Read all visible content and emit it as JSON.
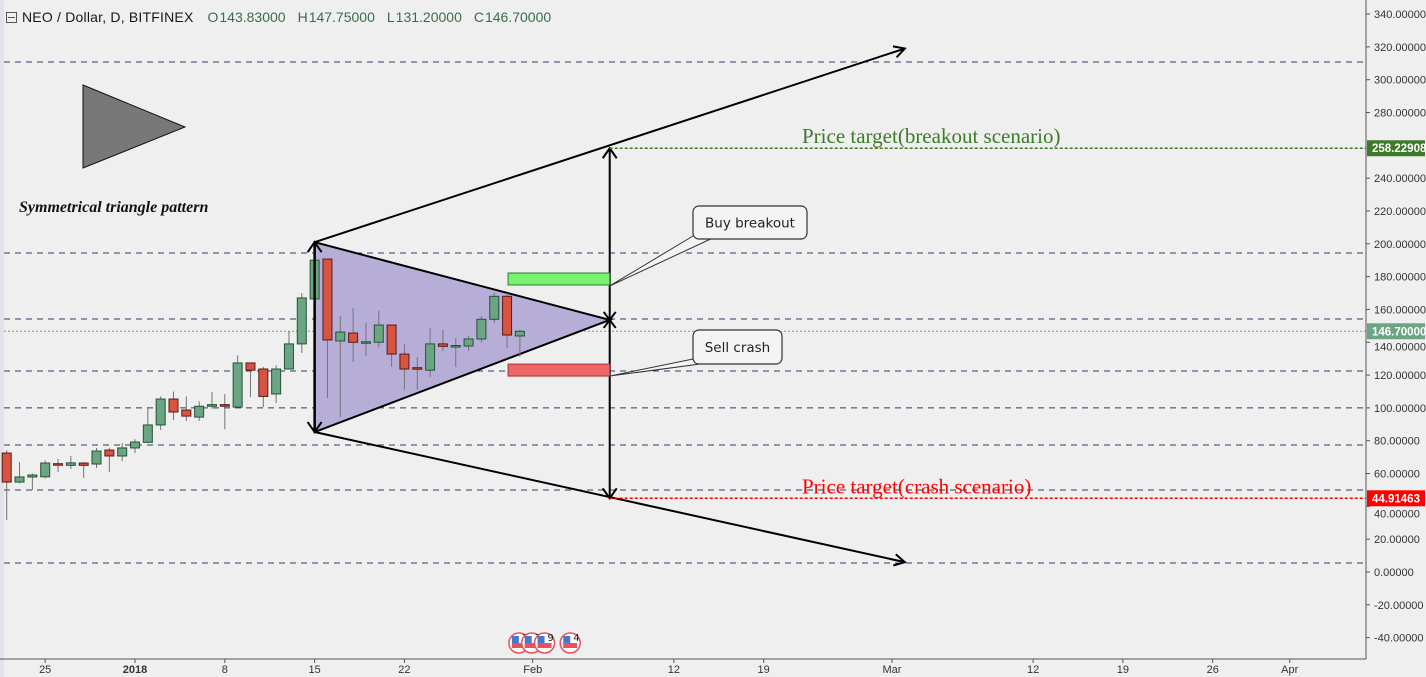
{
  "legend": {
    "symbol": "NEO / Dollar, D, BITFINEX",
    "open_label": "O",
    "open": "143.83000",
    "high_label": "H",
    "high": "147.75000",
    "low_label": "L",
    "low": "131.20000",
    "close_label": "C",
    "close": "146.70000"
  },
  "colors": {
    "background": "#efefef",
    "up": "#6ba583",
    "up_border": "#225437",
    "down": "#d75442",
    "down_border": "#5b1a13",
    "wick": "#737375",
    "grid_dash": "#2e3b6b",
    "triangle_fill": "#b7aed8",
    "breakout": "#3d7a2a",
    "crash": "#ff0000",
    "buy_zone": "#77f36f",
    "sell_zone": "#f0676a",
    "last_price": "#6ba583"
  },
  "chart_data": {
    "type": "candlestick",
    "title": "",
    "y_axis": {
      "range": [
        -50,
        345
      ],
      "ticks": [
        "340.00000",
        "320.00000",
        "300.00000",
        "280.00000",
        "240.00000",
        "220.00000",
        "200.00000",
        "180.00000",
        "160.00000",
        "140.00000",
        "120.00000",
        "100.00000",
        "80.00000",
        "60.00000",
        "40.00000",
        "20.00000",
        "0.00000",
        "-20.00000",
        "-40.00000"
      ],
      "tick_values": [
        340,
        320,
        300,
        280,
        240,
        220,
        200,
        180,
        160,
        140,
        120,
        100,
        80,
        60,
        40,
        20,
        0,
        -20,
        -40
      ]
    },
    "x_axis": {
      "ticks": [
        {
          "date": "2017-12-25",
          "label": "25"
        },
        {
          "date": "2018-01-01",
          "label": "2018"
        },
        {
          "date": "2018-01-08",
          "label": "8"
        },
        {
          "date": "2018-01-15",
          "label": "15"
        },
        {
          "date": "2018-01-22",
          "label": "22"
        },
        {
          "date": "2018-02-01",
          "label": "Feb"
        },
        {
          "date": "2018-02-12",
          "label": "12"
        },
        {
          "date": "2018-02-19",
          "label": "19"
        },
        {
          "date": "2018-03-01",
          "label": "Mar"
        },
        {
          "date": "2018-03-12",
          "label": "12"
        },
        {
          "date": "2018-03-19",
          "label": "19"
        },
        {
          "date": "2018-03-26",
          "label": "26"
        },
        {
          "date": "2018-04-01",
          "label": "Apr"
        }
      ]
    },
    "candles": [
      [
        "2017-12-22",
        72.5,
        74.3,
        31.7,
        54.8
      ],
      [
        "2017-12-23",
        54.8,
        67.0,
        54.0,
        57.9
      ],
      [
        "2017-12-24",
        57.9,
        60.0,
        50.0,
        59.1
      ],
      [
        "2017-12-25",
        58.0,
        68.0,
        57.0,
        66.4
      ],
      [
        "2017-12-26",
        66.0,
        68.9,
        61.0,
        65.5
      ],
      [
        "2017-12-27",
        65.0,
        70.7,
        62.8,
        66.5
      ],
      [
        "2017-12-28",
        66.4,
        67.0,
        57.3,
        65.0
      ],
      [
        "2017-12-29",
        65.8,
        75.6,
        63.4,
        73.7
      ],
      [
        "2017-12-30",
        74.3,
        75.6,
        61.0,
        70.7
      ],
      [
        "2017-12-31",
        70.7,
        78.6,
        67.6,
        75.6
      ],
      [
        "2018-01-01",
        75.6,
        81.0,
        72.5,
        79.2
      ],
      [
        "2018-01-02",
        79.0,
        100.5,
        78.6,
        89.6
      ],
      [
        "2018-01-03",
        89.6,
        107.0,
        86.5,
        105.4
      ],
      [
        "2018-01-04",
        105.4,
        110.0,
        92.6,
        97.5
      ],
      [
        "2018-01-05",
        98.7,
        107.0,
        92.0,
        95.0
      ],
      [
        "2018-01-06",
        94.4,
        104.0,
        92.0,
        101.0
      ],
      [
        "2018-01-07",
        101.0,
        109.7,
        99.5,
        102.0
      ],
      [
        "2018-01-08",
        102.0,
        108.5,
        87.0,
        101.0
      ],
      [
        "2018-01-09",
        100.5,
        132.0,
        100.5,
        127.4
      ],
      [
        "2018-01-10",
        127.4,
        127.4,
        106.6,
        123.0
      ],
      [
        "2018-01-11",
        123.7,
        125.0,
        100.5,
        107.0
      ],
      [
        "2018-01-12",
        108.5,
        126.0,
        103.0,
        123.7
      ],
      [
        "2018-01-13",
        123.7,
        146.9,
        123.7,
        139.0
      ],
      [
        "2018-01-14",
        139.0,
        170.0,
        133.5,
        167.0
      ],
      [
        "2018-01-15",
        166.4,
        196.0,
        166.4,
        190.0
      ],
      [
        "2018-01-16",
        190.7,
        190.7,
        106.0,
        141.4
      ],
      [
        "2018-01-17",
        140.8,
        156.0,
        94.5,
        146.2
      ],
      [
        "2018-01-18",
        145.6,
        160.9,
        128.0,
        140.0
      ],
      [
        "2018-01-19",
        139.5,
        151.7,
        131.6,
        140.3
      ],
      [
        "2018-01-20",
        140.0,
        159.0,
        137.0,
        150.5
      ],
      [
        "2018-01-21",
        150.5,
        150.5,
        125.0,
        132.8
      ],
      [
        "2018-01-22",
        132.8,
        139.0,
        111.0,
        123.7
      ],
      [
        "2018-01-23",
        124.5,
        131.0,
        111.0,
        124.0
      ],
      [
        "2018-01-24",
        123.0,
        148.7,
        118.8,
        139.0
      ],
      [
        "2018-01-25",
        139.0,
        147.5,
        134.7,
        137.5
      ],
      [
        "2018-01-26",
        137.5,
        142.6,
        125.0,
        138.0
      ],
      [
        "2018-01-27",
        137.7,
        144.0,
        134.7,
        142.0
      ],
      [
        "2018-01-28",
        142.0,
        156.0,
        140.0,
        154.0
      ],
      [
        "2018-01-29",
        154.0,
        170.0,
        151.7,
        168.0
      ],
      [
        "2018-01-30",
        168.0,
        170.0,
        136.5,
        144.4
      ],
      [
        "2018-01-31",
        143.83,
        147.75,
        131.2,
        146.7
      ]
    ],
    "last_price": {
      "value": 146.7,
      "label": "146.70000"
    },
    "horizontal_levels": [
      310.8,
      194.4,
      154.2,
      122.5,
      100.0,
      77.4,
      50.0,
      5.5
    ],
    "price_targets": [
      {
        "label": "Price target(breakout scenario)",
        "value": 258.22908,
        "axis_label": "258.22908",
        "from": "2018-02-07"
      },
      {
        "label": "Price target(crash scenario)",
        "value": 44.91463,
        "axis_label": "44.91463",
        "from": "2018-02-07"
      }
    ],
    "drawings": {
      "triangle": [
        [
          "2018-01-15",
          201.0
        ],
        [
          "2018-01-15",
          85.3
        ],
        [
          "2018-02-07",
          153.6
        ]
      ],
      "upper_trendline": [
        [
          "2018-01-15",
          201.0
        ],
        [
          "2018-03-02",
          319.0
        ]
      ],
      "lower_trendline": [
        [
          "2018-01-15",
          85.3
        ],
        [
          "2018-03-02",
          6.0
        ]
      ],
      "pattern_height_arrow": [
        "2018-01-15",
        201.0,
        85.3
      ],
      "projection_arrow": [
        "2018-02-07",
        258.22908,
        44.91463
      ],
      "buy_zone": {
        "from": "2018-01-30",
        "to": "2018-02-07",
        "top": 182.2,
        "bottom": 174.9
      },
      "sell_zone": {
        "from": "2018-01-30",
        "to": "2018-02-07",
        "top": 126.7,
        "bottom": 119.4
      }
    },
    "annotations": {
      "pattern_label": "Symmetrical triangle pattern",
      "buy_callout": "Buy breakout",
      "sell_callout": "Sell crash"
    },
    "events": [
      {
        "date": "2018-01-31",
        "label": "11"
      },
      {
        "date": "2018-02-01",
        "label": "7"
      },
      {
        "date": "2018-02-02",
        "label": "9"
      },
      {
        "date": "2018-02-04",
        "label": "4"
      }
    ]
  }
}
